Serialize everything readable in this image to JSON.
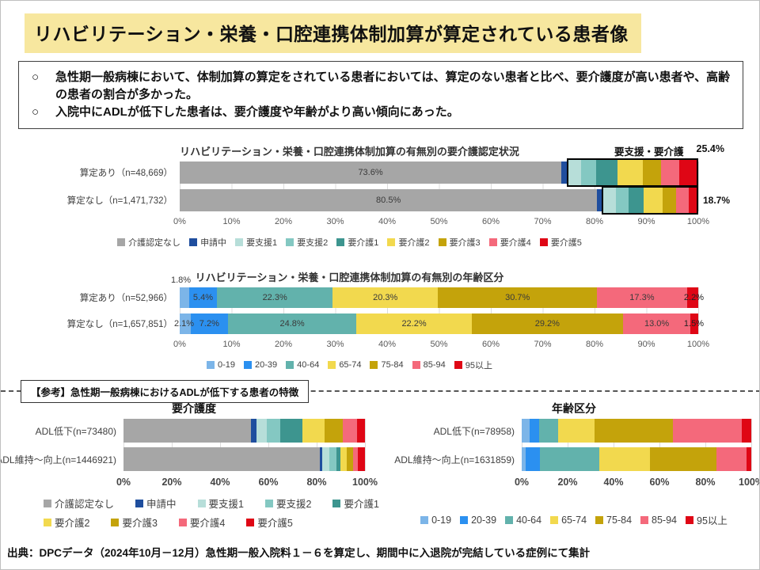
{
  "title": "リハビリテーション・栄養・口腔連携体制加算が算定されている患者像",
  "summary": {
    "bullet1_marker": "○",
    "bullet1": "急性期一般病棟において、体制加算の算定をされている患者においては、算定のない患者と比べ、要介護度が高い患者や、高齢の患者の割合が多かった。",
    "bullet2_marker": "○",
    "bullet2": "入院中にADLが低下した患者は、要介護度や年齢がより高い傾向にあった。"
  },
  "reference_box": "【参考】急性期一般病棟におけるADLが低下する患者の特徴",
  "source": "出典：DPCデータ（2024年10月－12月）急性期一般入院料１－６を算定し、期間中に入退院が完結している症例にて集計",
  "colors": {
    "title_highlight": "#F7E79F",
    "grid": "#DCDCDC",
    "box_outline": "#000000"
  },
  "chart_data": [
    {
      "type": "bar",
      "variant": "horizontal-stacked-100",
      "title": "リハビリテーション・栄養・口腔連携体制加算の有無別の要介護認定状況",
      "annotation_label": "要支援・要介護",
      "annotation_value": "25.4%",
      "categories": [
        "介護認定なし",
        "申請中",
        "要支援1",
        "要支援2",
        "要介護1",
        "要介護2",
        "要介護3",
        "要介護4",
        "要介護5"
      ],
      "colors": [
        "#A6A6A6",
        "#1F4E9E",
        "#B7DED9",
        "#84C8C2",
        "#3D958F",
        "#F2D94E",
        "#C4A30B",
        "#F4697B",
        "#DF0615"
      ],
      "x_ticks": [
        "0%",
        "10%",
        "20%",
        "30%",
        "40%",
        "50%",
        "60%",
        "70%",
        "80%",
        "90%",
        "100%"
      ],
      "rows": [
        {
          "label": "算定あり（n=48,669）",
          "values": [
            73.6,
            1.0,
            2.6,
            3.0,
            4.2,
            5.0,
            3.5,
            3.7,
            3.4
          ],
          "seg_labels": [
            "73.6%",
            null,
            null,
            null,
            null,
            null,
            null,
            null,
            null
          ],
          "box_from": 2,
          "box_total": 25.4
        },
        {
          "label": "算定なし（n=1,471,732）",
          "values": [
            80.5,
            0.8,
            2.6,
            2.5,
            3.0,
            3.8,
            2.7,
            2.5,
            1.6
          ],
          "seg_labels": [
            "80.5%",
            null,
            null,
            null,
            null,
            null,
            null,
            null,
            null
          ],
          "box_from": 2,
          "box_total": 18.7,
          "right_label": "18.7%",
          "right_outside": true
        }
      ]
    },
    {
      "type": "bar",
      "variant": "horizontal-stacked-100",
      "title": "リハビリテーション・栄養・口腔連携体制加算の有無別の年齢区分",
      "categories": [
        "0-19",
        "20-39",
        "40-64",
        "65-74",
        "75-84",
        "85-94",
        "95以上"
      ],
      "colors": [
        "#7CB5E8",
        "#2B90F0",
        "#62B2AC",
        "#F2D94E",
        "#C4A30B",
        "#F4697B",
        "#DF0615"
      ],
      "x_ticks": [
        "0%",
        "10%",
        "20%",
        "30%",
        "40%",
        "50%",
        "60%",
        "70%",
        "80%",
        "90%",
        "100%"
      ],
      "rows": [
        {
          "label": "算定あり（n=52,966）",
          "values": [
            1.8,
            5.4,
            22.3,
            20.3,
            30.7,
            17.3,
            2.2
          ],
          "seg_labels": [
            null,
            "5.4%",
            "22.3%",
            "20.3%",
            "30.7%",
            "17.3%",
            null
          ],
          "above_label": "1.8%",
          "right_label": "2.2%"
        },
        {
          "label": "算定なし（n=1,657,851）",
          "values": [
            2.1,
            7.2,
            24.8,
            22.2,
            29.2,
            13.0,
            1.5
          ],
          "seg_labels": [
            null,
            "7.2%",
            "24.8%",
            "22.2%",
            "29.2%",
            "13.0%",
            null
          ],
          "left_label": "2.1%",
          "right_label": "1.5%"
        }
      ]
    },
    {
      "type": "bar",
      "variant": "horizontal-stacked-100",
      "title": "要介護度",
      "categories": [
        "介護認定なし",
        "申請中",
        "要支援1",
        "要支援2",
        "要介護1",
        "要介護2",
        "要介護3",
        "要介護4",
        "要介護5"
      ],
      "colors": [
        "#A6A6A6",
        "#1F4E9E",
        "#B7DED9",
        "#84C8C2",
        "#3D958F",
        "#F2D94E",
        "#C4A30B",
        "#F4697B",
        "#DF0615"
      ],
      "x_ticks": [
        "0%",
        "20%",
        "40%",
        "60%",
        "80%",
        "100%"
      ],
      "legend_rows": [
        5,
        4
      ],
      "rows": [
        {
          "label": "ADL低下(n=73480)",
          "values": [
            52.8,
            2.2,
            4.3,
            5.7,
            9.0,
            9.4,
            7.5,
            6.0,
            3.1
          ]
        },
        {
          "label": "ADL維持～向上(n=1446921)",
          "values": [
            81.2,
            1.2,
            3.0,
            2.9,
            1.5,
            2.8,
            2.4,
            2.2,
            2.8
          ]
        }
      ]
    },
    {
      "type": "bar",
      "variant": "horizontal-stacked-100",
      "title": "年齢区分",
      "categories": [
        "0-19",
        "20-39",
        "40-64",
        "65-74",
        "75-84",
        "85-94",
        "95以上"
      ],
      "colors": [
        "#7CB5E8",
        "#2B90F0",
        "#62B2AC",
        "#F2D94E",
        "#C4A30B",
        "#F4697B",
        "#DF0615"
      ],
      "x_ticks": [
        "0%",
        "20%",
        "40%",
        "60%",
        "80%",
        "100%"
      ],
      "rows": [
        {
          "label": "ADL低下(n=78958)",
          "values": [
            3.3,
            4.4,
            8.0,
            16.2,
            34.0,
            29.9,
            4.2
          ]
        },
        {
          "label": "ADL維持～向上(n=1631859)",
          "values": [
            1.8,
            6.3,
            25.6,
            22.0,
            29.3,
            12.8,
            2.2
          ]
        }
      ]
    }
  ]
}
